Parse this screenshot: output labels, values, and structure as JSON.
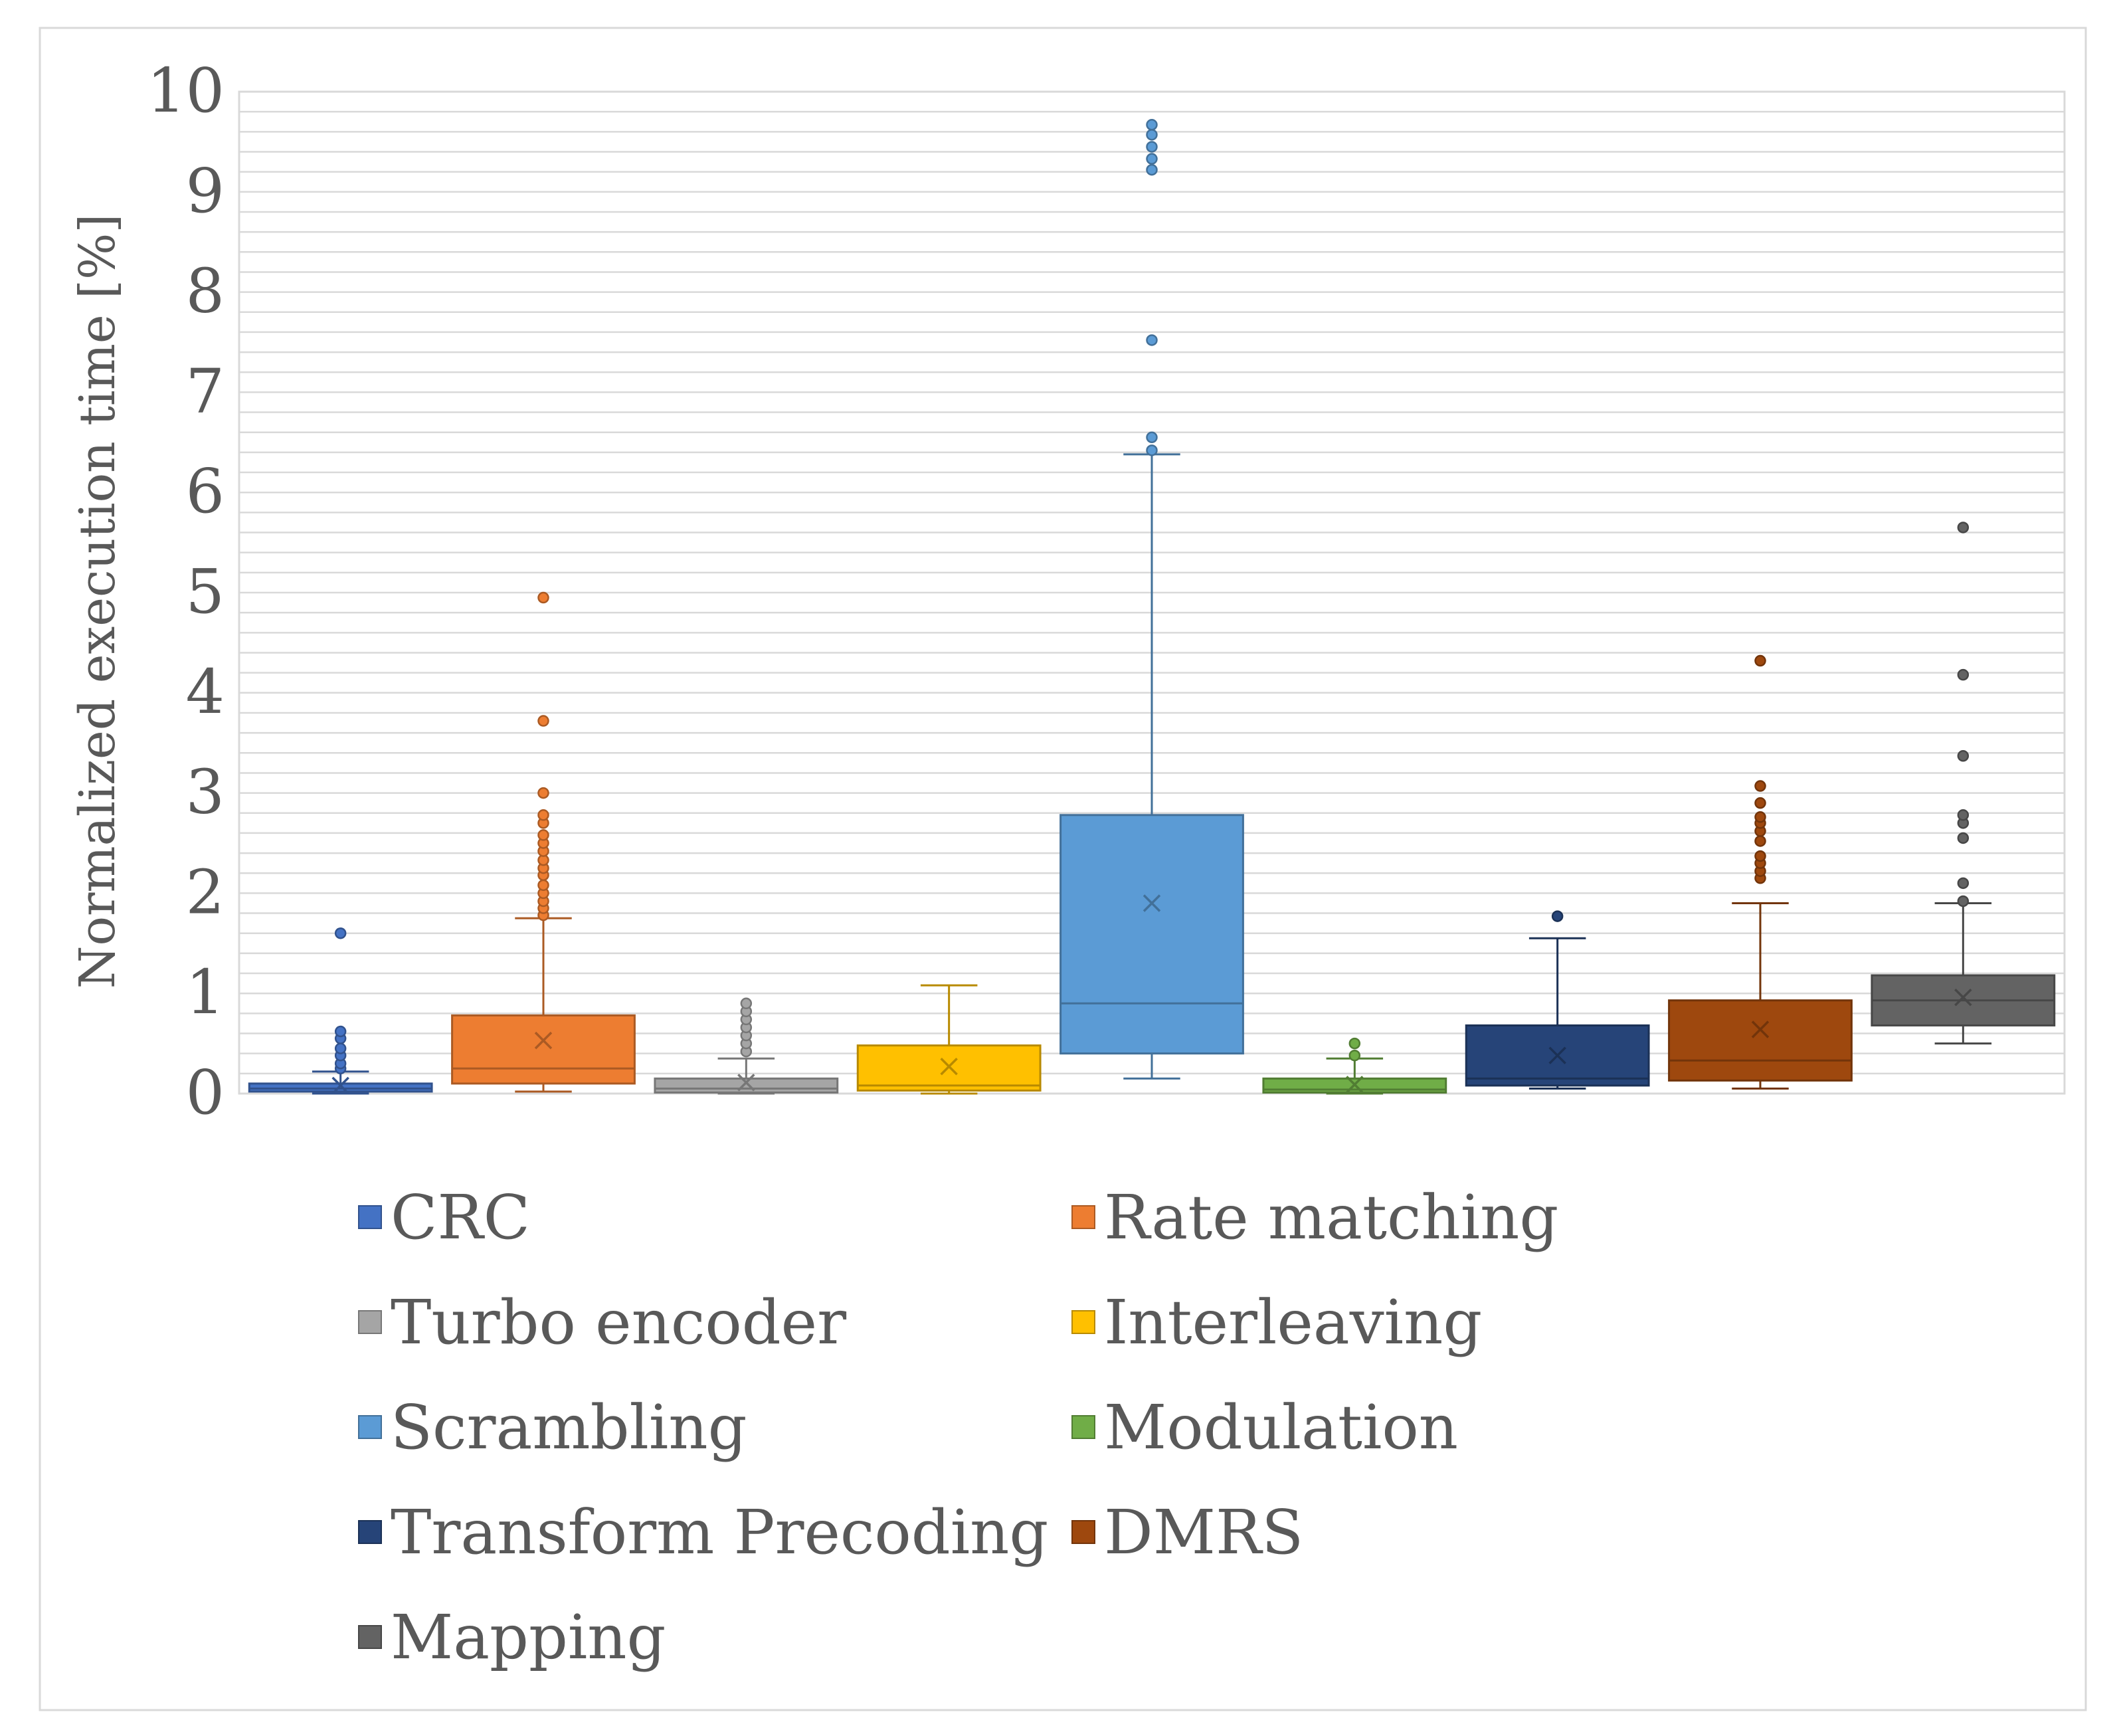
{
  "chart_data": {
    "type": "box",
    "title": "",
    "xlabel": "",
    "ylabel": "Normalized execution time [%]",
    "ylim": [
      0,
      10
    ],
    "yticks": [
      0,
      1,
      2,
      3,
      4,
      5,
      6,
      7,
      8,
      9,
      10
    ],
    "ytick_labels": [
      "0",
      "1",
      "2",
      "3",
      "4",
      "5",
      "6",
      "7",
      "8",
      "9",
      "10"
    ],
    "minor_grid_step": 0.2,
    "legend_position": "bottom",
    "series": [
      {
        "name": "CRC",
        "color": "#4472C4",
        "whisker_low": 0.0,
        "q1": 0.02,
        "median": 0.05,
        "q3": 0.1,
        "whisker_high": 0.22,
        "mean": 0.08,
        "outliers": [
          0.25,
          0.3,
          0.38,
          0.45,
          0.55,
          0.62,
          1.6
        ]
      },
      {
        "name": "Rate matching",
        "color": "#ED7D31",
        "whisker_low": 0.02,
        "q1": 0.1,
        "median": 0.25,
        "q3": 0.78,
        "whisker_high": 1.75,
        "mean": 0.53,
        "outliers": [
          1.78,
          1.85,
          1.92,
          2.0,
          2.08,
          2.18,
          2.25,
          2.33,
          2.42,
          2.5,
          2.58,
          2.7,
          2.78,
          3.0,
          3.72,
          4.95
        ]
      },
      {
        "name": "Turbo encoder",
        "color": "#A5A5A5",
        "whisker_low": 0.0,
        "q1": 0.01,
        "median": 0.05,
        "q3": 0.15,
        "whisker_high": 0.35,
        "mean": 0.11,
        "outliers": [
          0.42,
          0.5,
          0.58,
          0.66,
          0.74,
          0.82,
          0.9
        ]
      },
      {
        "name": "Interleaving",
        "color": "#FFC000",
        "whisker_low": 0.0,
        "q1": 0.03,
        "median": 0.08,
        "q3": 0.48,
        "whisker_high": 1.08,
        "mean": 0.27,
        "outliers": []
      },
      {
        "name": "Scrambling",
        "color": "#5B9BD5",
        "whisker_low": 0.15,
        "q1": 0.4,
        "median": 0.9,
        "q3": 2.78,
        "whisker_high": 6.38,
        "mean": 1.9,
        "outliers": [
          6.42,
          6.55,
          7.52,
          9.22,
          9.33,
          9.45,
          9.57,
          9.67
        ]
      },
      {
        "name": "Modulation",
        "color": "#70AD47",
        "whisker_low": 0.0,
        "q1": 0.01,
        "median": 0.04,
        "q3": 0.15,
        "whisker_high": 0.35,
        "mean": 0.09,
        "outliers": [
          0.38,
          0.5
        ]
      },
      {
        "name": "Transform Precoding",
        "color": "#264478",
        "whisker_low": 0.05,
        "q1": 0.08,
        "median": 0.15,
        "q3": 0.68,
        "whisker_high": 1.55,
        "mean": 0.38,
        "outliers": [
          1.77
        ]
      },
      {
        "name": "DMRS",
        "color": "#9E480E",
        "whisker_low": 0.05,
        "q1": 0.13,
        "median": 0.33,
        "q3": 0.93,
        "whisker_high": 1.9,
        "mean": 0.64,
        "outliers": [
          2.15,
          2.22,
          2.3,
          2.37,
          2.52,
          2.62,
          2.7,
          2.76,
          2.9,
          3.07,
          4.32
        ]
      },
      {
        "name": "Mapping",
        "color": "#636363",
        "whisker_low": 0.5,
        "q1": 0.68,
        "median": 0.93,
        "q3": 1.18,
        "whisker_high": 1.9,
        "mean": 0.96,
        "outliers": [
          1.92,
          2.1,
          2.55,
          2.7,
          2.78,
          3.37,
          4.18,
          5.65
        ]
      }
    ]
  }
}
